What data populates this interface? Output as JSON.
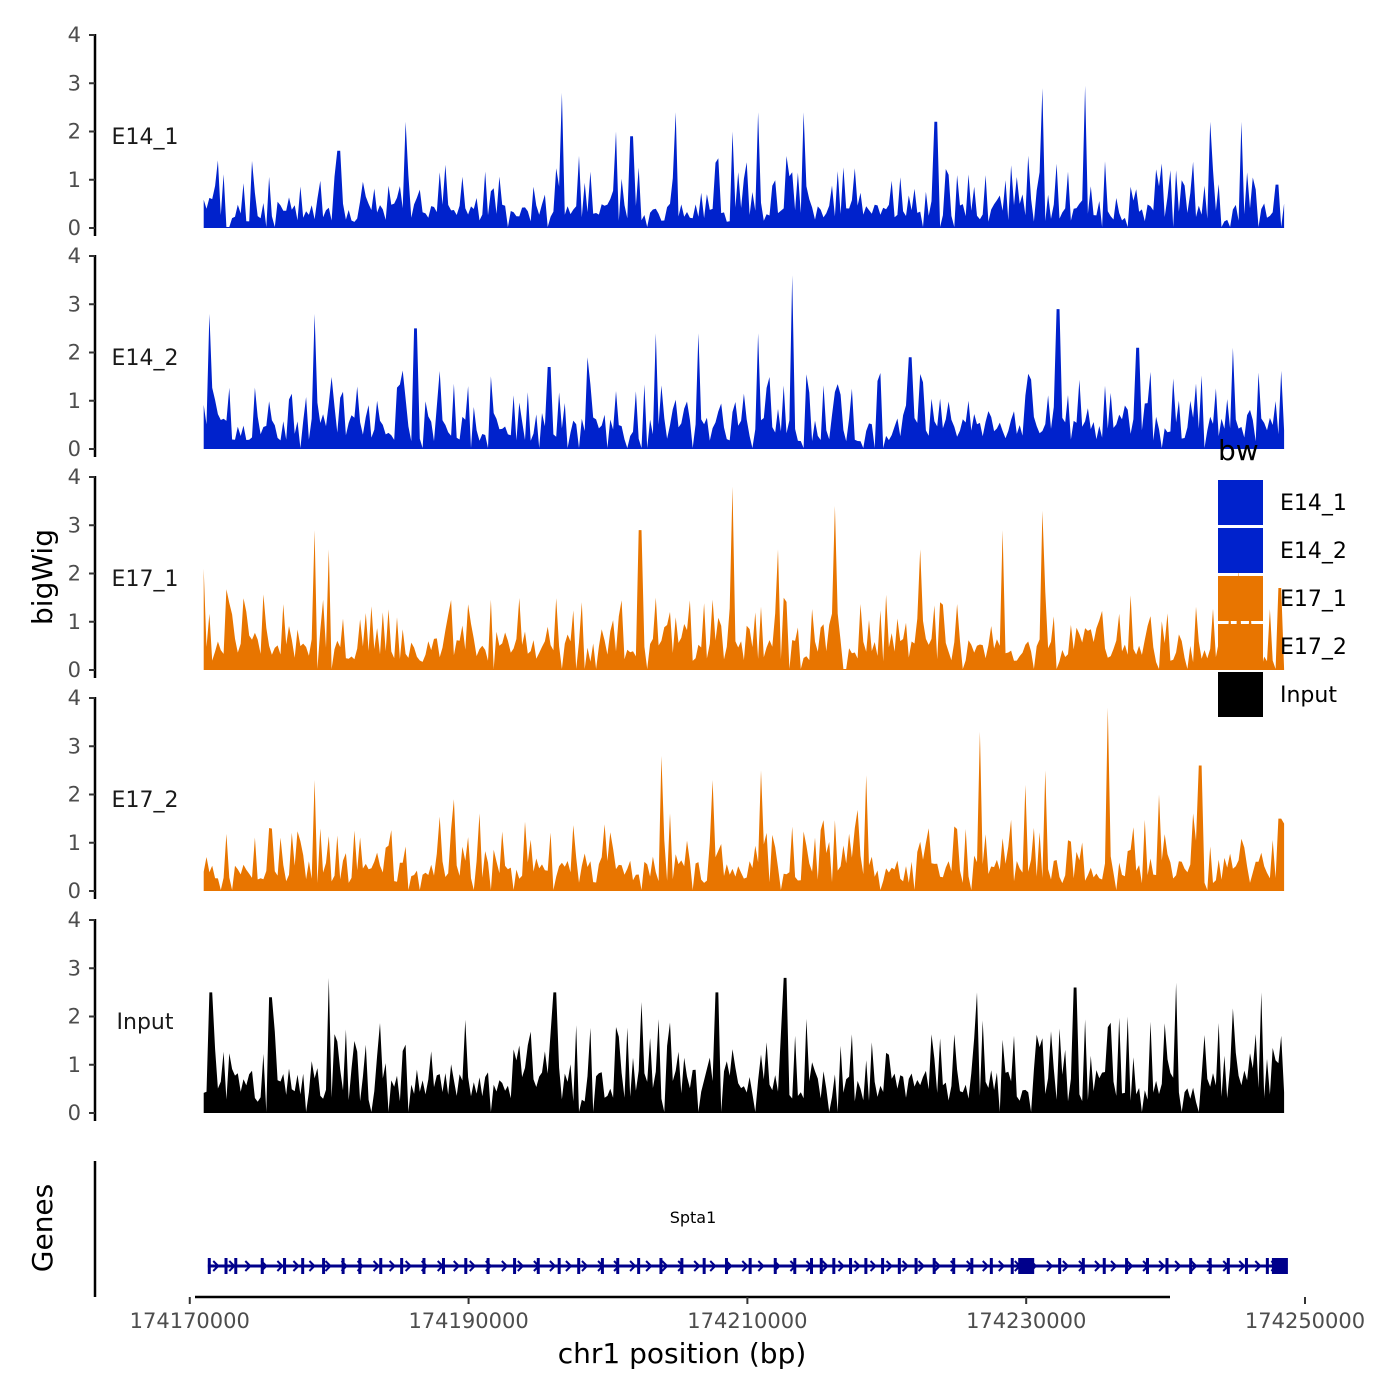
{
  "chart_data": {
    "type": "area",
    "title": "",
    "xlabel": "chr1 position (bp)",
    "ylabel": "bigWig",
    "gene_track_label": "Genes",
    "xlim": [
      174166000,
      174250000
    ],
    "ylim": [
      0,
      4
    ],
    "x_ticks": [
      174170000,
      174190000,
      174210000,
      174230000,
      174250000
    ],
    "x_tick_labels": [
      "174170000",
      "174190000",
      "174210000",
      "174230000",
      "174250000"
    ],
    "y_ticks": [
      0,
      1,
      2,
      3,
      4
    ],
    "y_tick_labels": [
      "0",
      "1",
      "2",
      "3",
      "4"
    ],
    "data_range": [
      174171000,
      174248500
    ],
    "legend": {
      "title": "bw",
      "position": "right",
      "entries": [
        {
          "label": "E14_1",
          "color": "#0022cc"
        },
        {
          "label": "E14_2",
          "color": "#0022cc"
        },
        {
          "label": "E17_1",
          "color": "#e87500"
        },
        {
          "label": "E17_2",
          "color": "#e87500"
        },
        {
          "label": "Input",
          "color": "#000000"
        }
      ]
    },
    "series": [
      {
        "name": "E14_1",
        "color": "#0022cc",
        "base": 0.35,
        "noise": 0.75,
        "seed": 11,
        "peaks": [
          [
            174172000,
            1.4
          ],
          [
            174180700,
            1.6
          ],
          [
            174185500,
            2.2
          ],
          [
            174196700,
            2.8
          ],
          [
            174200500,
            2.0
          ],
          [
            174201700,
            1.9
          ],
          [
            174204800,
            2.4
          ],
          [
            174209000,
            2.0
          ],
          [
            174210700,
            2.4
          ],
          [
            174214000,
            2.4
          ],
          [
            174223500,
            2.2
          ],
          [
            174231200,
            2.9
          ],
          [
            174234200,
            2.95
          ],
          [
            174243200,
            2.2
          ],
          [
            174245500,
            2.2
          ],
          [
            174248000,
            0.9
          ]
        ]
      },
      {
        "name": "E14_2",
        "color": "#0022cc",
        "base": 0.45,
        "noise": 0.8,
        "seed": 23,
        "peaks": [
          [
            174171400,
            2.8
          ],
          [
            174179000,
            2.8
          ],
          [
            174186200,
            2.5
          ],
          [
            174195800,
            1.7
          ],
          [
            174198500,
            1.9
          ],
          [
            174203400,
            2.4
          ],
          [
            174206500,
            2.4
          ],
          [
            174210700,
            2.4
          ],
          [
            174213200,
            3.6
          ],
          [
            174221700,
            1.9
          ],
          [
            174232300,
            2.9
          ],
          [
            174238000,
            2.1
          ],
          [
            174244800,
            2.1
          ],
          [
            174248300,
            0.6
          ]
        ]
      },
      {
        "name": "E17_1",
        "color": "#e87500",
        "base": 0.45,
        "noise": 0.75,
        "seed": 37,
        "peaks": [
          [
            174171000,
            2.1
          ],
          [
            174178900,
            2.9
          ],
          [
            174180000,
            2.5
          ],
          [
            174202300,
            2.9
          ],
          [
            174209000,
            3.8
          ],
          [
            174212200,
            2.5
          ],
          [
            174216300,
            3.4
          ],
          [
            174222400,
            2.5
          ],
          [
            174228300,
            2.9
          ],
          [
            174231200,
            3.3
          ],
          [
            174245300,
            2.1
          ],
          [
            174248200,
            1.7
          ]
        ]
      },
      {
        "name": "E17_2",
        "color": "#e87500",
        "base": 0.45,
        "noise": 0.75,
        "seed": 53,
        "peaks": [
          [
            174179000,
            2.3
          ],
          [
            174189000,
            1.9
          ],
          [
            174203800,
            2.8
          ],
          [
            174207500,
            2.3
          ],
          [
            174211000,
            2.5
          ],
          [
            174218600,
            2.4
          ],
          [
            174226600,
            3.3
          ],
          [
            174230000,
            2.2
          ],
          [
            174231300,
            2.5
          ],
          [
            174235800,
            3.8
          ],
          [
            174239500,
            2.0
          ],
          [
            174242500,
            2.6
          ],
          [
            174248200,
            1.5
          ]
        ]
      },
      {
        "name": "Input",
        "color": "#000000",
        "base": 0.65,
        "noise": 0.9,
        "seed": 71,
        "peaks": [
          [
            174171500,
            2.5
          ],
          [
            174175800,
            2.4
          ],
          [
            174180000,
            2.8
          ],
          [
            174196200,
            2.5
          ],
          [
            174202400,
            2.3
          ],
          [
            174207800,
            2.5
          ],
          [
            174212700,
            2.8
          ],
          [
            174226400,
            2.5
          ],
          [
            174233500,
            2.6
          ],
          [
            174240800,
            2.7
          ],
          [
            174246800,
            2.5
          ],
          [
            174248300,
            1.6
          ]
        ]
      }
    ],
    "gene": {
      "name": "Spta1",
      "color": "#00008b",
      "start": 174171300,
      "end": 174248300,
      "strand": "+",
      "exons": [
        174171400,
        174172600,
        174173300,
        174175200,
        174176800,
        174178100,
        174179600,
        174181000,
        174182200,
        174183700,
        174185200,
        174186800,
        174188200,
        174189800,
        174191400,
        174193300,
        174195000,
        174196500,
        174197900,
        174199600,
        174200700,
        174202200,
        174203800,
        174205300,
        174206900,
        174208500,
        174210200,
        174212000,
        174213400,
        174214600,
        174215300,
        174216200,
        174217400,
        174218500,
        174219700,
        174220900,
        174222100,
        174223400,
        174224800,
        174226100,
        174227500,
        174229000,
        174232400,
        174234100,
        174235600,
        174237200,
        174238700,
        174240100,
        174241800,
        174243200,
        174244500,
        174245800,
        174247300
      ],
      "big_exons": [
        174230000,
        174248200
      ]
    }
  }
}
